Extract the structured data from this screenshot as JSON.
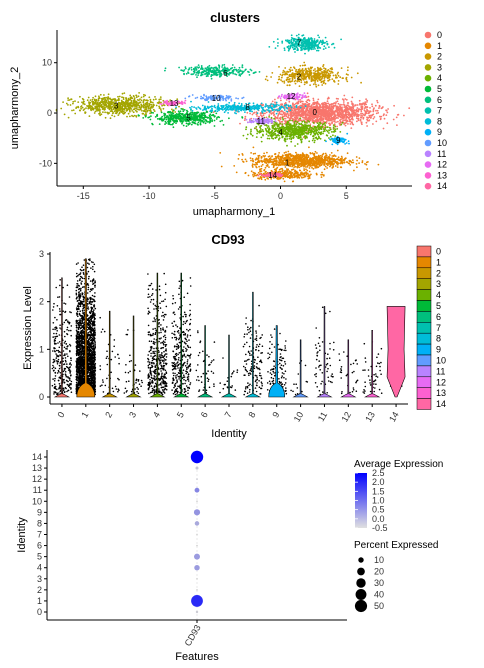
{
  "chart_data": [
    {
      "type": "scatter",
      "title": "clusters",
      "xlabel": "umapharmony_1",
      "ylabel": "umapharmony_2",
      "xlim": [
        -17,
        10
      ],
      "ylim": [
        -14.5,
        16.5
      ],
      "x_ticks": [
        -15,
        -10,
        -5,
        0,
        5
      ],
      "y_ticks": [
        -10,
        0,
        10
      ],
      "grid": false,
      "legend_position": "right",
      "legend": [
        "0",
        "1",
        "2",
        "3",
        "4",
        "5",
        "6",
        "7",
        "8",
        "9",
        "10",
        "11",
        "12",
        "13",
        "14"
      ],
      "clusters": [
        {
          "name": "0",
          "color": "#F8766D",
          "label_x": 2.6,
          "label_y": 0.2,
          "blobs": [
            [
              3.0,
              0.0,
              4.3,
              2.4,
              1500
            ]
          ]
        },
        {
          "name": "1",
          "color": "#E58700",
          "label_x": 0.5,
          "label_y": -9.8,
          "blobs": [
            [
              1.5,
              -9.5,
              3.6,
              1.5,
              900
            ],
            [
              0.2,
              -12.2,
              2.4,
              0.9,
              300
            ]
          ]
        },
        {
          "name": "2",
          "color": "#C99800",
          "label_x": 1.4,
          "label_y": 7.3,
          "blobs": [
            [
              2.3,
              7.4,
              2.4,
              1.6,
              450
            ]
          ]
        },
        {
          "name": "3",
          "color": "#A3A500",
          "label_x": -12.5,
          "label_y": 1.5,
          "blobs": [
            [
              -12.2,
              1.5,
              3.5,
              1.8,
              700
            ]
          ]
        },
        {
          "name": "4",
          "color": "#6BB100",
          "label_x": 0.0,
          "label_y": -3.8,
          "blobs": [
            [
              1.0,
              -3.5,
              3.0,
              1.8,
              650
            ]
          ]
        },
        {
          "name": "5",
          "color": "#00BA38",
          "label_x": -7.0,
          "label_y": -0.9,
          "blobs": [
            [
              -7.2,
              -1.0,
              2.4,
              1.3,
              450
            ]
          ]
        },
        {
          "name": "6",
          "color": "#00BF7D",
          "label_x": -4.2,
          "label_y": 8.0,
          "blobs": [
            [
              -4.8,
              8.3,
              2.6,
              1.0,
              280
            ]
          ]
        },
        {
          "name": "7",
          "color": "#00C0AF",
          "label_x": 1.4,
          "label_y": 14.0,
          "blobs": [
            [
              1.8,
              13.8,
              1.7,
              1.4,
              320
            ]
          ]
        },
        {
          "name": "8",
          "color": "#00BCD8",
          "label_x": -2.5,
          "label_y": 1.2,
          "blobs": [
            [
              -2.8,
              1.0,
              3.4,
              0.8,
              350
            ]
          ]
        },
        {
          "name": "9",
          "color": "#00B0F6",
          "label_x": 4.4,
          "label_y": -5.4,
          "blobs": [
            [
              4.4,
              -5.4,
              0.7,
              0.6,
              90
            ]
          ]
        },
        {
          "name": "10",
          "color": "#619CFF",
          "label_x": -4.9,
          "label_y": 3.0,
          "blobs": [
            [
              -5.0,
              3.0,
              1.6,
              0.5,
              110
            ]
          ]
        },
        {
          "name": "11",
          "color": "#B983FF",
          "label_x": -1.5,
          "label_y": -1.6,
          "blobs": [
            [
              -1.5,
              -1.6,
              0.9,
              0.5,
              90
            ]
          ]
        },
        {
          "name": "12",
          "color": "#E76BF3",
          "label_x": 0.8,
          "label_y": 3.4,
          "blobs": [
            [
              0.9,
              3.3,
              0.9,
              0.6,
              90
            ]
          ]
        },
        {
          "name": "13",
          "color": "#FD61D1",
          "label_x": -8.1,
          "label_y": 2.0,
          "blobs": [
            [
              -8.1,
              2.0,
              0.9,
              0.4,
              70
            ]
          ]
        },
        {
          "name": "14",
          "color": "#FF67A4",
          "label_x": -0.6,
          "label_y": -12.3,
          "blobs": [
            [
              -0.6,
              -12.3,
              0.8,
              0.4,
              60
            ]
          ]
        }
      ]
    },
    {
      "type": "violin",
      "title": "CD93",
      "xlabel": "Identity",
      "ylabel": "Expression Level",
      "ylim": [
        0,
        3
      ],
      "y_ticks": [
        0,
        1,
        2,
        3
      ],
      "categories": [
        "0",
        "1",
        "2",
        "3",
        "4",
        "5",
        "6",
        "7",
        "8",
        "9",
        "10",
        "11",
        "12",
        "13",
        "14"
      ],
      "colors": [
        "#F8766D",
        "#E58700",
        "#C99800",
        "#A3A500",
        "#6BB100",
        "#00BA38",
        "#00BF7D",
        "#00C0AF",
        "#00BCD8",
        "#00B0F6",
        "#619CFF",
        "#B983FF",
        "#E76BF3",
        "#FD61D1",
        "#FF67A4"
      ],
      "max_expression": [
        2.5,
        2.9,
        1.8,
        1.7,
        2.6,
        2.6,
        1.5,
        1.3,
        2.2,
        1.5,
        1.2,
        1.9,
        1.2,
        1.4,
        1.9
      ],
      "points_expressed": [
        280,
        2200,
        45,
        45,
        420,
        300,
        45,
        20,
        140,
        130,
        15,
        60,
        30,
        45,
        10
      ],
      "legend": [
        "0",
        "1",
        "2",
        "3",
        "4",
        "5",
        "6",
        "7",
        "8",
        "9",
        "10",
        "11",
        "12",
        "13",
        "14"
      ],
      "legend_position": "right"
    },
    {
      "type": "dot",
      "xlabel": "Features",
      "ylabel": "Identity",
      "features": [
        "CD93"
      ],
      "identities": [
        "0",
        "1",
        "2",
        "3",
        "4",
        "5",
        "6",
        "7",
        "8",
        "9",
        "10",
        "11",
        "12",
        "13",
        "14"
      ],
      "average_expression": [
        -0.4,
        1.9,
        -0.5,
        -0.5,
        0.3,
        0.3,
        -0.5,
        -0.5,
        0.1,
        0.4,
        -0.5,
        0.6,
        -0.4,
        -0.3,
        2.7
      ],
      "percent_expressed": [
        2,
        47,
        1,
        1,
        10,
        12,
        1,
        1,
        7,
        13,
        1,
        8,
        1,
        3,
        52
      ],
      "color_legend": {
        "title": "Average Expression",
        "ticks": [
          2.5,
          2.0,
          1.5,
          1.0,
          0.5,
          0.0,
          -0.5
        ],
        "low_color": "#D3D3D3",
        "high_color": "#0000FF"
      },
      "size_legend": {
        "title": "Percent Expressed",
        "ticks": [
          10,
          20,
          30,
          40,
          50
        ]
      }
    }
  ]
}
